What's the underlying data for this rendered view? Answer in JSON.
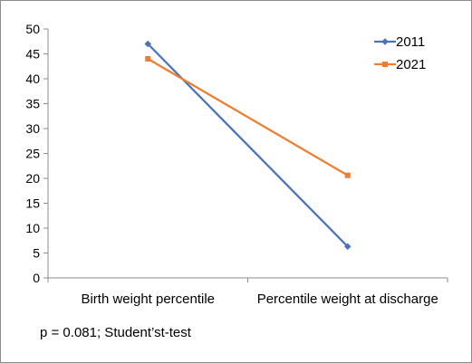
{
  "chart_data": {
    "type": "line",
    "categories": [
      "Birth weight percentile",
      "Percentile weight at discharge"
    ],
    "series": [
      {
        "name": "2011",
        "values": [
          47,
          6.3
        ],
        "color": "#4a72b8",
        "marker": "diamond"
      },
      {
        "name": "2021",
        "values": [
          44,
          20.6
        ],
        "color": "#ed7d31",
        "marker": "square"
      }
    ],
    "ylim": [
      0,
      50
    ],
    "yticks": [
      0,
      5,
      10,
      15,
      20,
      25,
      30,
      35,
      40,
      45,
      50
    ],
    "grid": false,
    "legend_position": "top-right",
    "note": "p = 0.081; Student’st-test"
  }
}
